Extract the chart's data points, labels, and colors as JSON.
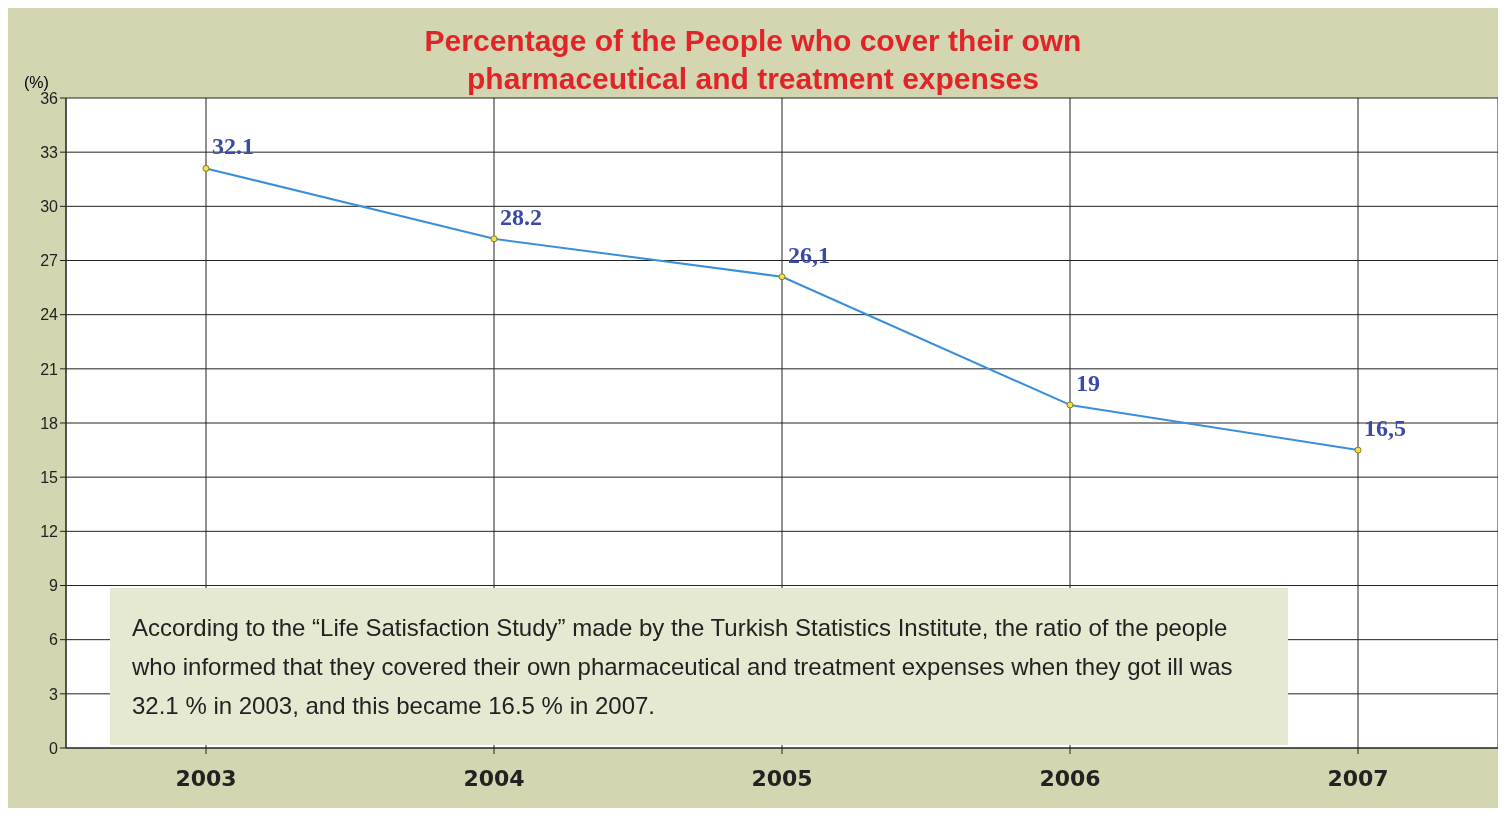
{
  "chart_data": {
    "type": "line",
    "title": "Percentage of the People who cover their own\npharmaceutical and treatment expenses",
    "ylabel": "(%)",
    "categories": [
      "2003",
      "2004",
      "2005",
      "2006",
      "2007"
    ],
    "series": [
      {
        "color": "#3a8fd8",
        "values": [
          32.1,
          28.2,
          26.1,
          19,
          16.5
        ],
        "value_labels": [
          "32.1",
          "28.2",
          "26,1",
          "19",
          "16,5"
        ]
      }
    ],
    "ylim": [
      0,
      36
    ],
    "yticks": [
      0,
      3,
      6,
      9,
      12,
      15,
      18,
      21,
      24,
      27,
      30,
      33,
      36
    ],
    "grid": true,
    "marker": "circle",
    "legend": false,
    "annotations": [
      "According to the “Life Satisfaction Study” made by the Turkish Statistics Institute, the ratio of the people who informed that they covered their own pharmaceutical and treatment expenses when they got ill was 32.1 % in 2003, and this became 16.5 % in 2007."
    ]
  }
}
